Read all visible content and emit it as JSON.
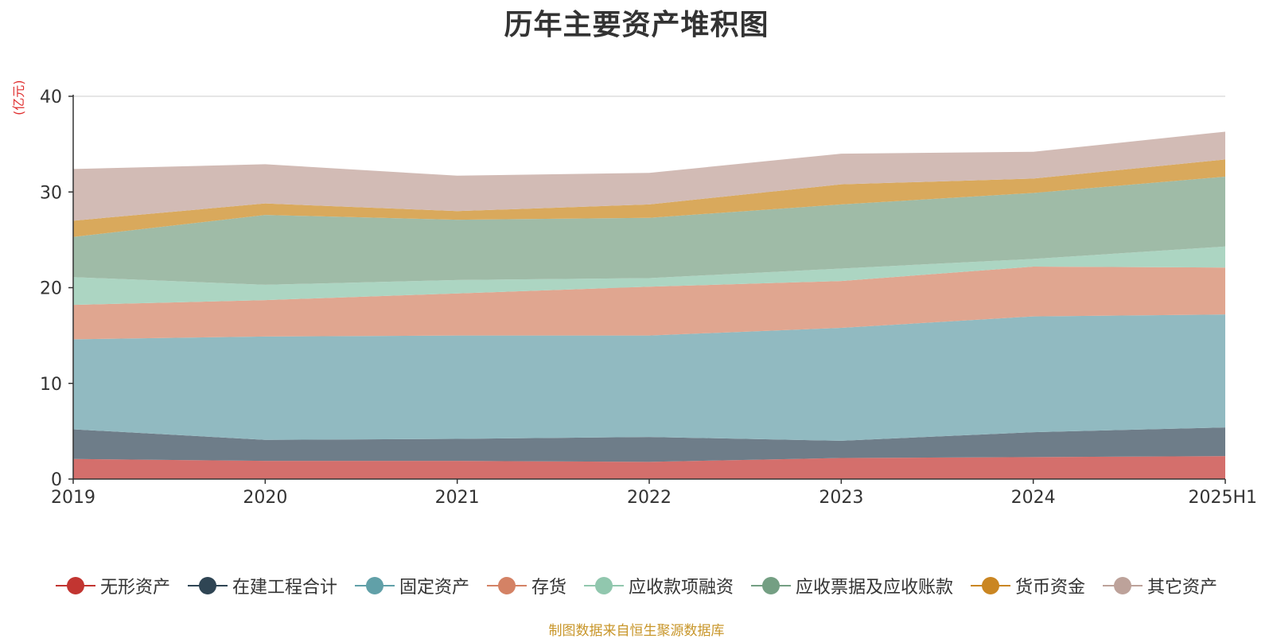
{
  "chart_data": {
    "type": "area",
    "stacked": true,
    "title": "历年主要资产堆积图",
    "unit_label": "(亿元)",
    "categories": [
      "2019",
      "2020",
      "2021",
      "2022",
      "2023",
      "2024",
      "2025H1"
    ],
    "ylim": [
      0,
      40
    ],
    "yticks": [
      0,
      10,
      20,
      30,
      40
    ],
    "grid": true,
    "legend_position": "bottom",
    "series": [
      {
        "name": "无形资产",
        "color": "#c23531",
        "area_color": "#d46f6c",
        "values": [
          2.1,
          1.9,
          1.9,
          1.8,
          2.2,
          2.3,
          2.4
        ]
      },
      {
        "name": "在建工程合计",
        "color": "#2f4554",
        "area_color": "#6e7d89",
        "values": [
          3.1,
          2.2,
          2.3,
          2.6,
          1.8,
          2.6,
          3.0
        ]
      },
      {
        "name": "固定资产",
        "color": "#61a0a8",
        "area_color": "#91bac1",
        "values": [
          9.4,
          10.8,
          10.8,
          10.6,
          11.8,
          12.1,
          11.8
        ]
      },
      {
        "name": "存货",
        "color": "#d48265",
        "area_color": "#e0a690",
        "values": [
          3.6,
          3.8,
          4.4,
          5.1,
          4.9,
          5.2,
          4.9
        ]
      },
      {
        "name": "应收款项融资",
        "color": "#91c7ae",
        "area_color": "#acd5c2",
        "values": [
          2.9,
          1.6,
          1.4,
          0.9,
          1.3,
          0.8,
          2.2
        ]
      },
      {
        "name": "应收票据及应收账款",
        "color": "#749f83",
        "area_color": "#9fbba7",
        "values": [
          4.2,
          7.3,
          6.3,
          6.3,
          6.7,
          6.9,
          7.3
        ]
      },
      {
        "name": "货币资金",
        "color": "#ca8622",
        "area_color": "#d9a95c",
        "values": [
          1.7,
          1.2,
          0.9,
          1.4,
          2.1,
          1.5,
          1.8
        ]
      },
      {
        "name": "其它资产",
        "color": "#bda29a",
        "area_color": "#d2bbb5",
        "values": [
          5.4,
          4.1,
          3.7,
          3.3,
          3.2,
          2.8,
          2.9
        ]
      }
    ]
  },
  "source_note": "制图数据来自恒生聚源数据库"
}
